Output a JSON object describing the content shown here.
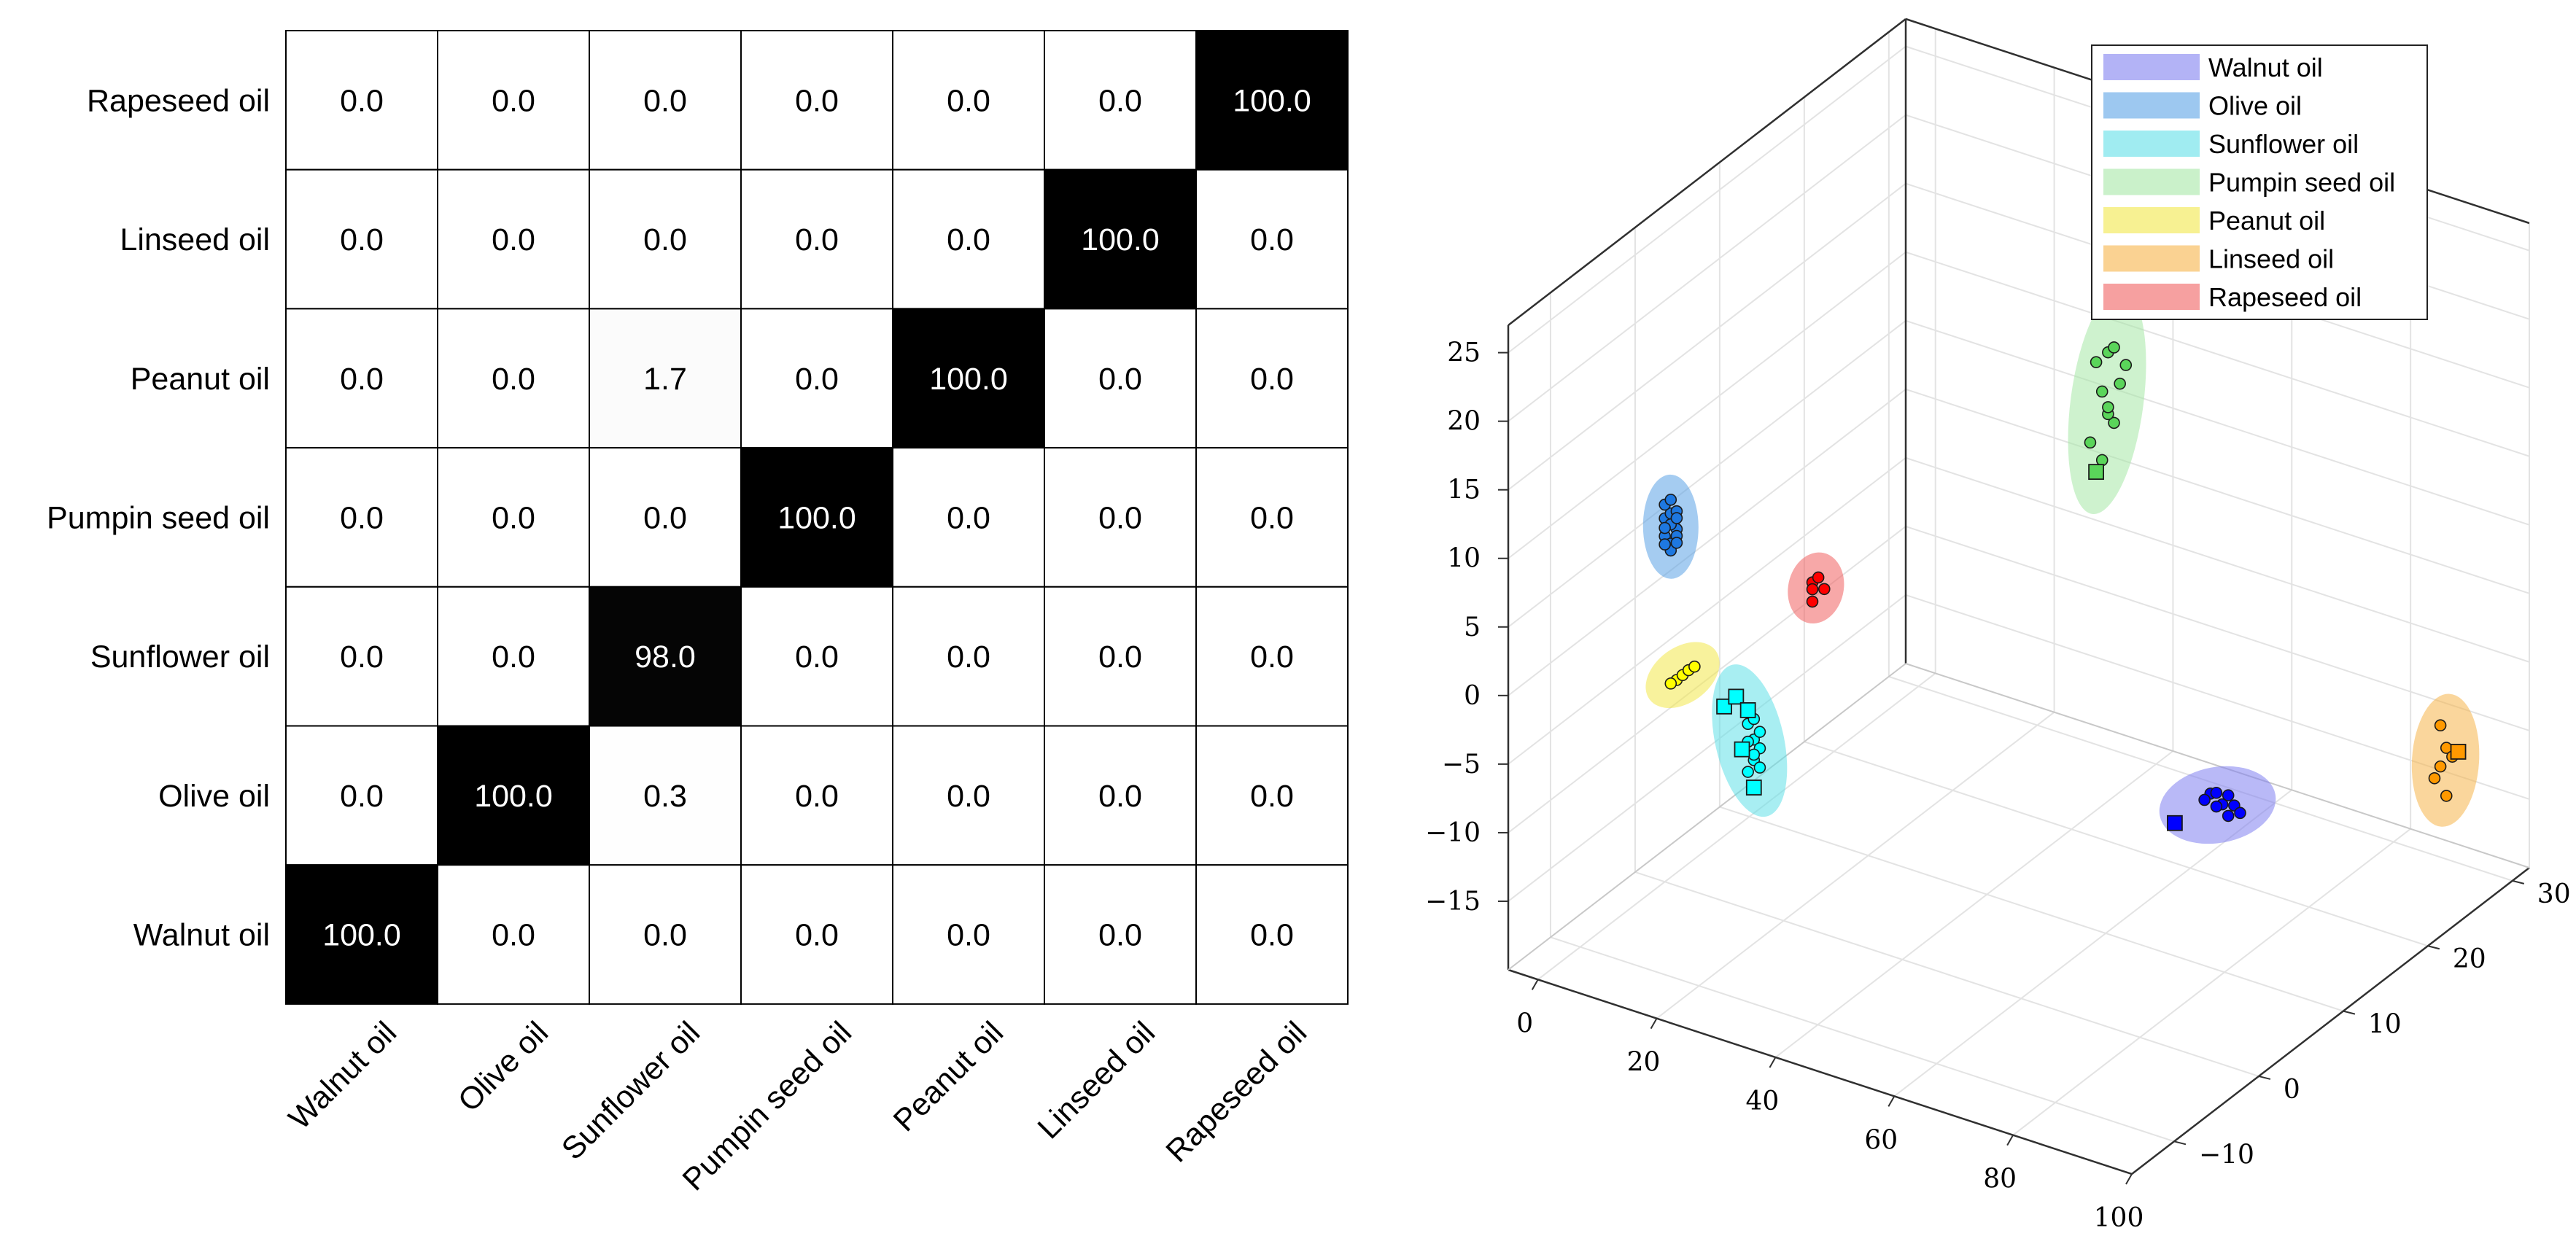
{
  "chart_data": [
    {
      "type": "heatmap",
      "title": "",
      "rows": [
        "Rapeseed oil",
        "Linseed oil",
        "Peanut oil",
        "Pumpin seed oil",
        "Sunflower oil",
        "Olive oil",
        "Walnut oil"
      ],
      "columns": [
        "Walnut oil",
        "Olive oil",
        "Sunflower oil",
        "Pumpin seed oil",
        "Peanut oil",
        "Linseed oil",
        "Rapeseed oil"
      ],
      "values": [
        [
          "0.0",
          "0.0",
          "0.0",
          "0.0",
          "0.0",
          "0.0",
          "100.0"
        ],
        [
          "0.0",
          "0.0",
          "0.0",
          "0.0",
          "0.0",
          "100.0",
          "0.0"
        ],
        [
          "0.0",
          "0.0",
          "1.7",
          "0.0",
          "100.0",
          "0.0",
          "0.0"
        ],
        [
          "0.0",
          "0.0",
          "0.0",
          "100.0",
          "0.0",
          "0.0",
          "0.0"
        ],
        [
          "0.0",
          "0.0",
          "98.0",
          "0.0",
          "0.0",
          "0.0",
          "0.0"
        ],
        [
          "0.0",
          "100.0",
          "0.3",
          "0.0",
          "0.0",
          "0.0",
          "0.0"
        ],
        [
          "100.0",
          "0.0",
          "0.0",
          "0.0",
          "0.0",
          "0.0",
          "0.0"
        ]
      ],
      "colormap": "grayscale, 0 = white, 100 = black"
    },
    {
      "type": "scatter",
      "projection": "3d",
      "x_ticks": [
        "0",
        "20",
        "40",
        "60",
        "80",
        "100"
      ],
      "y_ticks": [
        "−10",
        "0",
        "10",
        "20",
        "30"
      ],
      "z_ticks": [
        "25",
        "20",
        "15",
        "10",
        "5",
        "0",
        "−5",
        "−10",
        "−15"
      ],
      "xlim": [
        -5,
        100
      ],
      "ylim": [
        -15,
        32
      ],
      "zlim": [
        -20,
        27
      ],
      "grid": true,
      "legend_position": "top-right",
      "series": [
        {
          "name": "Walnut oil",
          "color": "#0000ff",
          "ellipse_color": "#8080f0",
          "points": [
            [
              52,
              28,
              -19.5
            ],
            [
              54,
              28,
              -20
            ],
            [
              56,
              28,
              -19.8
            ],
            [
              53,
              28,
              -20.3
            ],
            [
              55,
              28,
              -19.2
            ],
            [
              57,
              28,
              -20.2
            ],
            [
              51,
              28,
              -20.1
            ],
            [
              55,
              28,
              -20.7
            ],
            [
              53,
              28,
              -19.3
            ]
          ],
          "squares": [
            [
              46,
              28,
              -22.5
            ]
          ]
        },
        {
          "name": "Olive oil",
          "color": "#1e78e0",
          "ellipse_color": "#5ba3e6",
          "points": [
            [
              0,
              0,
              6.5
            ],
            [
              1,
              0,
              7
            ],
            [
              2,
              0,
              6
            ],
            [
              0,
              0,
              5.2
            ],
            [
              1,
              0,
              4.8
            ],
            [
              2,
              0,
              5.5
            ],
            [
              0,
              0,
              7.5
            ],
            [
              1,
              0,
              6.2
            ],
            [
              2,
              0,
              7.3
            ],
            [
              0,
              0,
              5.8
            ],
            [
              1,
              0,
              4.3
            ],
            [
              2,
              0,
              6.8
            ],
            [
              0,
              0,
              4.6
            ],
            [
              1,
              0,
              8
            ],
            [
              2,
              0,
              5
            ]
          ],
          "squares": []
        },
        {
          "name": "Sunflower oil",
          "color": "#00ffff",
          "ellipse_color": "#60e0e8",
          "points": [
            [
              14,
              0,
              -6.5
            ],
            [
              15,
              0,
              -7.5
            ],
            [
              16,
              0,
              -8
            ],
            [
              15,
              0,
              -9
            ],
            [
              14,
              0,
              -10
            ],
            [
              16,
              0,
              -6.8
            ],
            [
              15,
              0,
              -8.6
            ],
            [
              14,
              0,
              -7.8
            ],
            [
              16,
              0,
              -9.4
            ],
            [
              15,
              0,
              -6
            ]
          ],
          "squares": [
            [
              10,
              0,
              -5.8
            ],
            [
              12,
              0,
              -4.8
            ],
            [
              14,
              0,
              -5.5
            ],
            [
              13,
              0,
              -8.5
            ],
            [
              15,
              0,
              -11
            ]
          ]
        },
        {
          "name": "Pumpin seed oil",
          "color": "#5ad55a",
          "ellipse_color": "#a6e8a6",
          "points": [
            [
              50,
              18,
              12
            ],
            [
              49,
              18,
              12.5
            ],
            [
              48,
              18,
              14
            ],
            [
              51,
              18,
              15
            ],
            [
              47,
              18,
              16
            ],
            [
              49,
              18,
              17
            ],
            [
              50,
              18,
              17.5
            ],
            [
              52,
              18,
              16.5
            ],
            [
              48,
              18,
              9
            ],
            [
              46,
              18,
              10
            ],
            [
              49,
              18,
              13
            ]
          ],
          "squares": [
            [
              47,
              18,
              8
            ]
          ]
        },
        {
          "name": "Peanut oil",
          "color": "#ffff00",
          "ellipse_color": "#f2e84a",
          "points": [
            [
              2,
              0,
              -5
            ],
            [
              3,
              0,
              -4.5
            ],
            [
              4,
              0,
              -4
            ],
            [
              1,
              0,
              -5.4
            ],
            [
              5,
              0,
              -3.6
            ]
          ],
          "squares": []
        },
        {
          "name": "Linseed oil",
          "color": "#ff9900",
          "ellipse_color": "#f6b44a",
          "points": [
            [
              95,
              25,
              -7
            ],
            [
              96,
              25,
              -8.5
            ],
            [
              97,
              25,
              -9
            ],
            [
              95,
              25,
              -10
            ],
            [
              96,
              25,
              -12
            ],
            [
              94,
              25,
              -11
            ]
          ],
          "squares": [
            [
              98,
              25,
              -8.5
            ]
          ]
        },
        {
          "name": "Rapeseed oil",
          "color": "#ff0000",
          "ellipse_color": "#f06060",
          "points": [
            [
              22,
              2,
              4
            ],
            [
              23,
              2,
              4.5
            ],
            [
              22,
              2,
              3.5
            ],
            [
              24,
              2,
              3.8
            ],
            [
              22,
              2,
              2.6
            ]
          ],
          "squares": []
        }
      ]
    }
  ]
}
